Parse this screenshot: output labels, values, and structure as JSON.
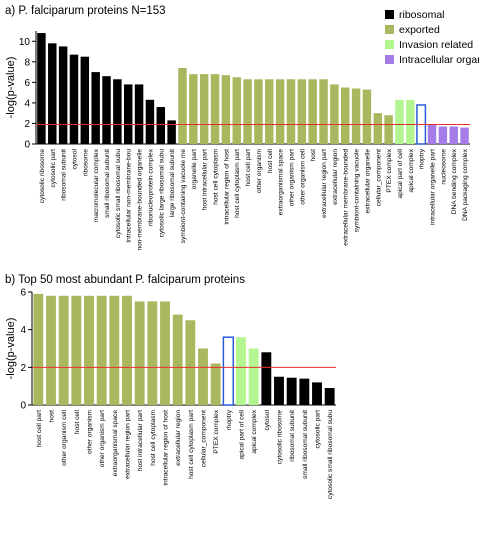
{
  "chart_data": [
    {
      "type": "bar",
      "title": "a) P. falciparum proteins N=153",
      "y_label": "-log(p-value)",
      "categories": [
        "cytosolic ribosome",
        "cytosolic part",
        "ribosomal subunit",
        "cytosol",
        "ribosome",
        "macromolecular complex",
        "small ribosomal subunit",
        "cytosolic small ribosomal subu",
        "intracellular non-membrane-bou",
        "non-membrane-bounded organelle",
        "ribonucleoprotein complex",
        "cytosolic large ribosomal subu",
        "large ribosomal subunit",
        "symbiont-containing vacuole me",
        "organelle part",
        "host intracellular part",
        "host cell cytoplasm",
        "intracellular region of host",
        "host cell cytoplasm part",
        "host cell part",
        "other organism",
        "host cell",
        "extraorganismal space",
        "other organism part",
        "other organism cell",
        "host",
        "extracellular region part",
        "extracellular region",
        "extracellular membrane-bounded",
        "symbiont-containing vacuole",
        "extracellular organelle",
        "cellular_component",
        "PTEX complex",
        "apical part of cell",
        "apical complex",
        "rhoptry",
        "intracellular organelle part",
        "nucleosome",
        "DNA bending complex",
        "DNA packaging complex"
      ],
      "series": [
        {
          "name": "ribosomal",
          "color": "#000000",
          "values": [
            10.8,
            9.8,
            9.5,
            8.7,
            8.5,
            7.0,
            6.6,
            6.3,
            5.8,
            5.8,
            4.3,
            3.6,
            2.3,
            null,
            null,
            null,
            null,
            null,
            null,
            null,
            null,
            null,
            null,
            null,
            null,
            null,
            null,
            null,
            null,
            null,
            null,
            null,
            null,
            null,
            null,
            null,
            null,
            null,
            null,
            null
          ]
        },
        {
          "name": "exported",
          "color": "#a9b85e",
          "values": [
            null,
            null,
            null,
            null,
            null,
            null,
            null,
            null,
            null,
            null,
            null,
            null,
            null,
            7.4,
            6.8,
            6.8,
            6.8,
            6.7,
            6.5,
            6.3,
            6.3,
            6.3,
            6.3,
            6.3,
            6.3,
            6.3,
            6.3,
            5.8,
            5.5,
            5.4,
            5.3,
            3.0,
            2.8,
            null,
            null,
            null,
            null,
            null,
            null,
            null
          ]
        },
        {
          "name": "Invasion related",
          "color": "#b3f590",
          "values": [
            null,
            null,
            null,
            null,
            null,
            null,
            null,
            null,
            null,
            null,
            null,
            null,
            null,
            null,
            null,
            null,
            null,
            null,
            null,
            null,
            null,
            null,
            null,
            null,
            null,
            null,
            null,
            null,
            null,
            null,
            null,
            null,
            null,
            4.3,
            4.3,
            3.8,
            null,
            null,
            null,
            null
          ]
        },
        {
          "name": "Intracellular organelles",
          "color": "#a57ce8",
          "values": [
            null,
            null,
            null,
            null,
            null,
            null,
            null,
            null,
            null,
            null,
            null,
            null,
            null,
            null,
            null,
            null,
            null,
            null,
            null,
            null,
            null,
            null,
            null,
            null,
            null,
            null,
            null,
            null,
            null,
            null,
            null,
            null,
            null,
            null,
            null,
            null,
            1.9,
            1.7,
            1.7,
            1.6
          ]
        }
      ],
      "outlined": [
        35
      ],
      "outline_color": "#2a5bd7",
      "reference_line": 1.9,
      "reference_color": "#e53030",
      "ylim": [
        0,
        11
      ],
      "yticks": [
        0,
        2,
        4,
        6,
        8,
        10
      ],
      "legend": "top-right"
    },
    {
      "type": "bar",
      "title": "b) Top 50 most abundant P. falciparum proteins",
      "y_label": "-log(p-value)",
      "categories": [
        "host cell part",
        "host",
        "other organism cell",
        "host cell",
        "other organism",
        "other organism part",
        "extraorganismal space",
        "extracellular region part",
        "host intracellular part",
        "host cell cytoplasm",
        "intracellular region of host",
        "extracellular region",
        "host cell cytoplasm part",
        "cellular_component",
        "PTEX complex",
        "rhoptry",
        "apical part of cell",
        "apical complex",
        "cytosol",
        "cytosolic ribosome",
        "ribosomal subunit",
        "small ribosomal subunit",
        "cytosolic part",
        "cytosolic small ribosomal subu"
      ],
      "values": [
        5.9,
        5.8,
        5.8,
        5.8,
        5.8,
        5.8,
        5.8,
        5.8,
        5.5,
        5.5,
        5.5,
        4.8,
        4.5,
        3.0,
        2.2,
        3.6,
        3.6,
        3.0,
        2.8,
        1.5,
        1.45,
        1.4,
        1.2,
        0.9
      ],
      "colors": [
        "#a9b85e",
        "#a9b85e",
        "#a9b85e",
        "#a9b85e",
        "#a9b85e",
        "#a9b85e",
        "#a9b85e",
        "#a9b85e",
        "#a9b85e",
        "#a9b85e",
        "#a9b85e",
        "#a9b85e",
        "#a9b85e",
        "#a9b85e",
        "#a9b85e",
        "#b3f590",
        "#b3f590",
        "#b3f590",
        "#000000",
        "#000000",
        "#000000",
        "#000000",
        "#000000",
        "#000000"
      ],
      "outlined": [
        15
      ],
      "outline_color": "#2a5bd7",
      "reference_line": 2,
      "reference_color": "#e53030",
      "ylim": [
        0,
        6
      ],
      "yticks": [
        0,
        2,
        4,
        6
      ]
    }
  ]
}
